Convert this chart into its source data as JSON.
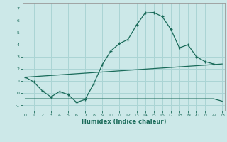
{
  "title": "",
  "xlabel": "Humidex (Indice chaleur)",
  "bg_color": "#cce8e8",
  "grid_color": "#aad4d4",
  "line_color": "#1a6b5a",
  "line1_x": [
    0,
    1,
    2,
    3,
    4,
    5,
    6,
    7,
    8,
    9,
    10,
    11,
    12,
    13,
    14,
    15,
    16,
    17,
    18,
    19,
    20,
    21,
    22
  ],
  "line1_y": [
    1.3,
    0.9,
    0.15,
    -0.35,
    0.1,
    -0.15,
    -0.8,
    -0.55,
    0.75,
    2.35,
    3.5,
    4.1,
    4.45,
    5.65,
    6.65,
    6.7,
    6.35,
    5.3,
    3.75,
    4.0,
    3.0,
    2.6,
    2.4
  ],
  "line2_x": [
    0,
    23
  ],
  "line2_y": [
    1.3,
    2.4
  ],
  "line3_x": [
    0,
    10,
    17,
    22,
    23
  ],
  "line3_y": [
    -0.5,
    -0.5,
    -0.5,
    -0.5,
    -0.7
  ],
  "xlim": [
    -0.3,
    23.3
  ],
  "ylim": [
    -1.5,
    7.5
  ],
  "yticks": [
    -1,
    0,
    1,
    2,
    3,
    4,
    5,
    6,
    7
  ],
  "xticks": [
    0,
    1,
    2,
    3,
    4,
    5,
    6,
    7,
    8,
    9,
    10,
    11,
    12,
    13,
    14,
    15,
    16,
    17,
    18,
    19,
    20,
    21,
    22,
    23
  ]
}
